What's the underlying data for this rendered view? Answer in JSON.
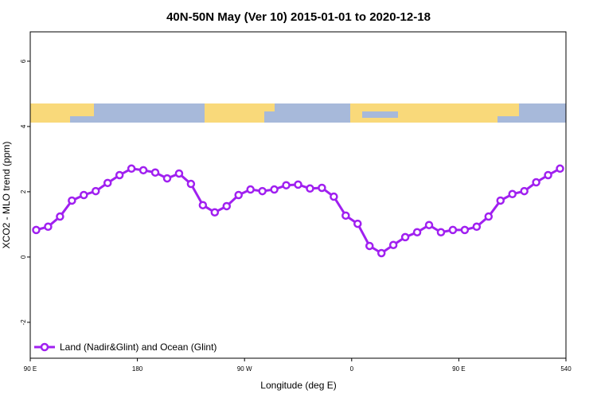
{
  "chart_data": {
    "type": "line",
    "title": "40N-50N May (Ver 10)   2015-01-01 to 2020-12-18",
    "xlabel": "Longitude (deg E)",
    "ylabel": "XCO2 - MLO trend (ppm)",
    "x": [
      95,
      105,
      115,
      125,
      135,
      145,
      155,
      165,
      175,
      185,
      195,
      205,
      215,
      225,
      235,
      245,
      255,
      265,
      275,
      285,
      295,
      305,
      315,
      325,
      335,
      345,
      355,
      365,
      375,
      385,
      395,
      405,
      415,
      425,
      435,
      445,
      455,
      465,
      475,
      485,
      495,
      505,
      515,
      525,
      535
    ],
    "series": [
      {
        "name": "Land (Nadir&Glint) and Ocean (Glint)",
        "color": "#a020f0",
        "values": [
          0.83,
          0.93,
          1.24,
          1.73,
          1.9,
          2.02,
          2.27,
          2.51,
          2.71,
          2.66,
          2.59,
          2.41,
          2.56,
          2.24,
          1.59,
          1.37,
          1.56,
          1.9,
          2.07,
          2.02,
          2.07,
          2.2,
          2.22,
          2.1,
          2.12,
          1.85,
          1.27,
          1.02,
          0.34,
          0.12,
          0.37,
          0.61,
          0.76,
          0.98,
          0.76,
          0.83,
          0.83,
          0.93,
          1.24,
          1.73,
          1.93,
          2.02,
          2.29,
          2.51,
          2.71
        ]
      }
    ],
    "xlim": [
      90,
      540
    ],
    "xticks": [
      {
        "value": 90,
        "label": "90 E"
      },
      180,
      {
        "value": 270,
        "label": "90 W"
      },
      {
        "value": 360,
        "label": "0"
      },
      {
        "value": 450,
        "label": "90 E"
      },
      540
    ],
    "ylim": [
      -3.1,
      6.9
    ],
    "yticks": [
      -2,
      0,
      2,
      4,
      6
    ],
    "legend": "bottomleft"
  }
}
